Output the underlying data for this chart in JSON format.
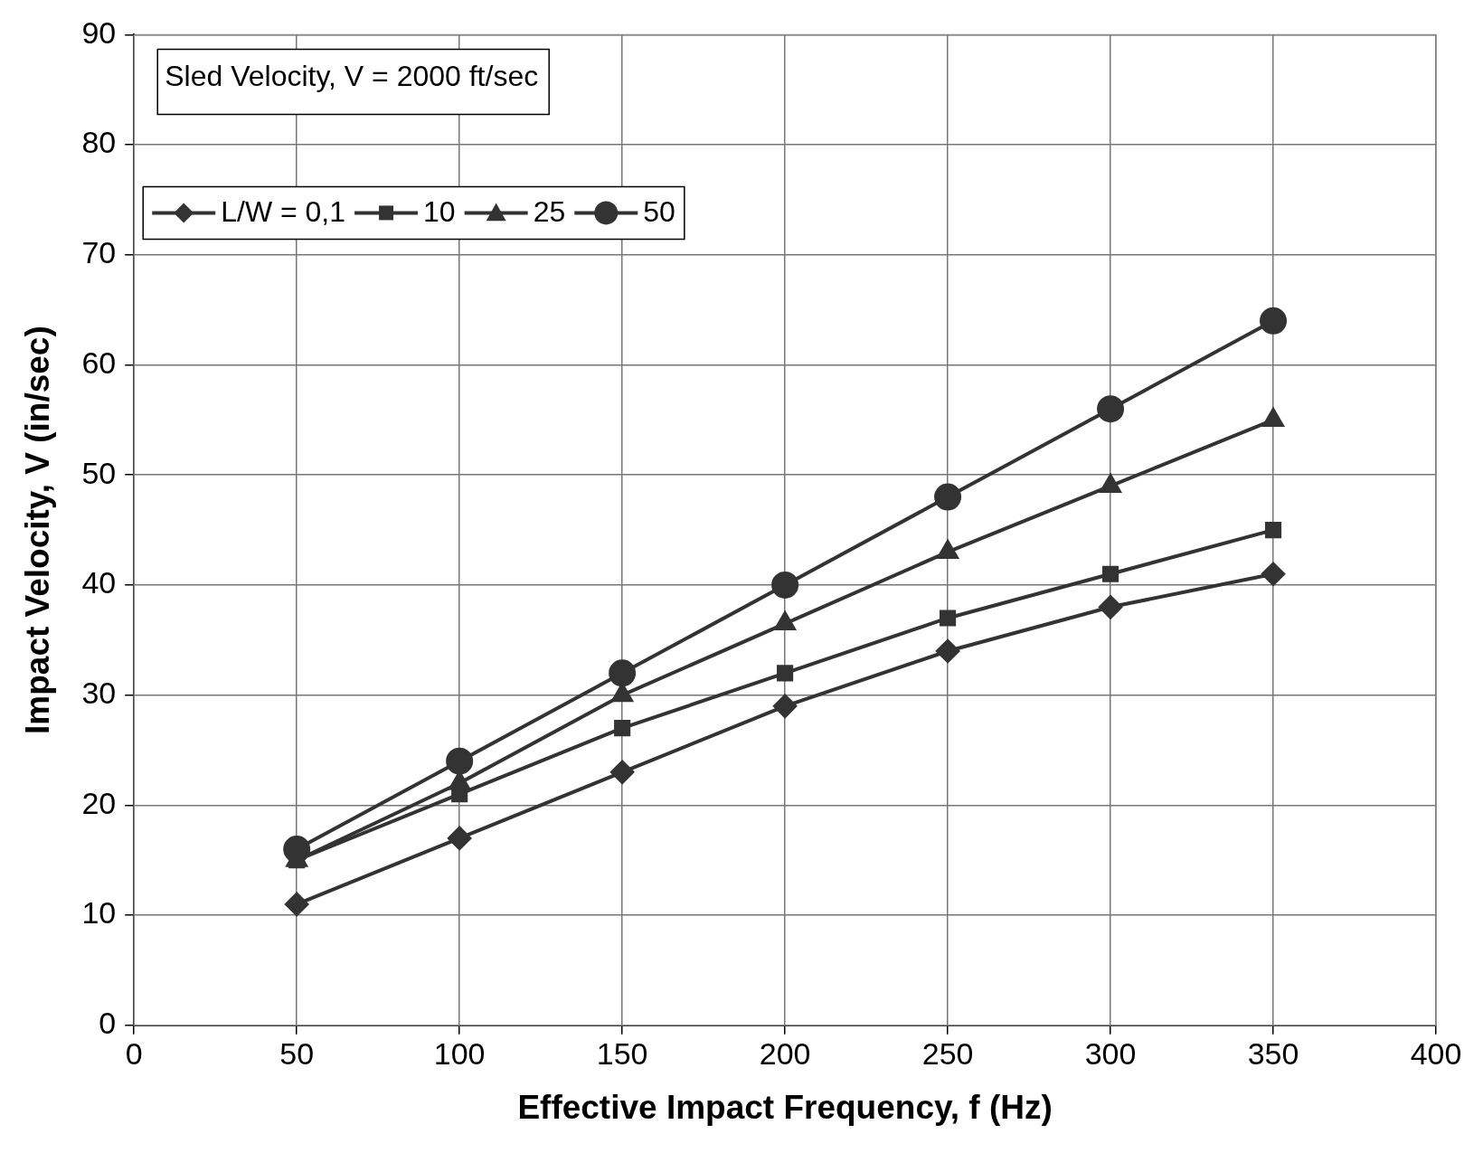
{
  "chart_data": {
    "type": "line",
    "xlabel": "Effective Impact Frequency, f (Hz)",
    "ylabel": "Impact Velocity, V (in/sec)",
    "annotations": [
      "Sled Velocity, V = 2000 ft/sec"
    ],
    "x": [
      50,
      100,
      150,
      200,
      250,
      300,
      350
    ],
    "series": [
      {
        "name": "L/W = 0,1",
        "color": "#333333",
        "marker": "diamond",
        "values": [
          11,
          17,
          23,
          29,
          34,
          38,
          41
        ]
      },
      {
        "name": "10",
        "color": "#333333",
        "marker": "square",
        "values": [
          15,
          21,
          27,
          32,
          37,
          41,
          45
        ]
      },
      {
        "name": "25",
        "color": "#333333",
        "marker": "triangle",
        "values": [
          15,
          22,
          30,
          36.5,
          43,
          49,
          55
        ]
      },
      {
        "name": "50",
        "color": "#333333",
        "marker": "circle",
        "values": [
          16,
          24,
          32,
          40,
          48,
          56,
          64
        ]
      }
    ],
    "xlim": [
      0,
      400
    ],
    "xticks": [
      0,
      50,
      100,
      150,
      200,
      250,
      300,
      350,
      400
    ],
    "ylim": [
      0,
      90
    ],
    "yticks": [
      0,
      10,
      20,
      30,
      40,
      50,
      60,
      70,
      80,
      90
    ],
    "grid": true,
    "legend": "top left",
    "line_style": "solid"
  }
}
